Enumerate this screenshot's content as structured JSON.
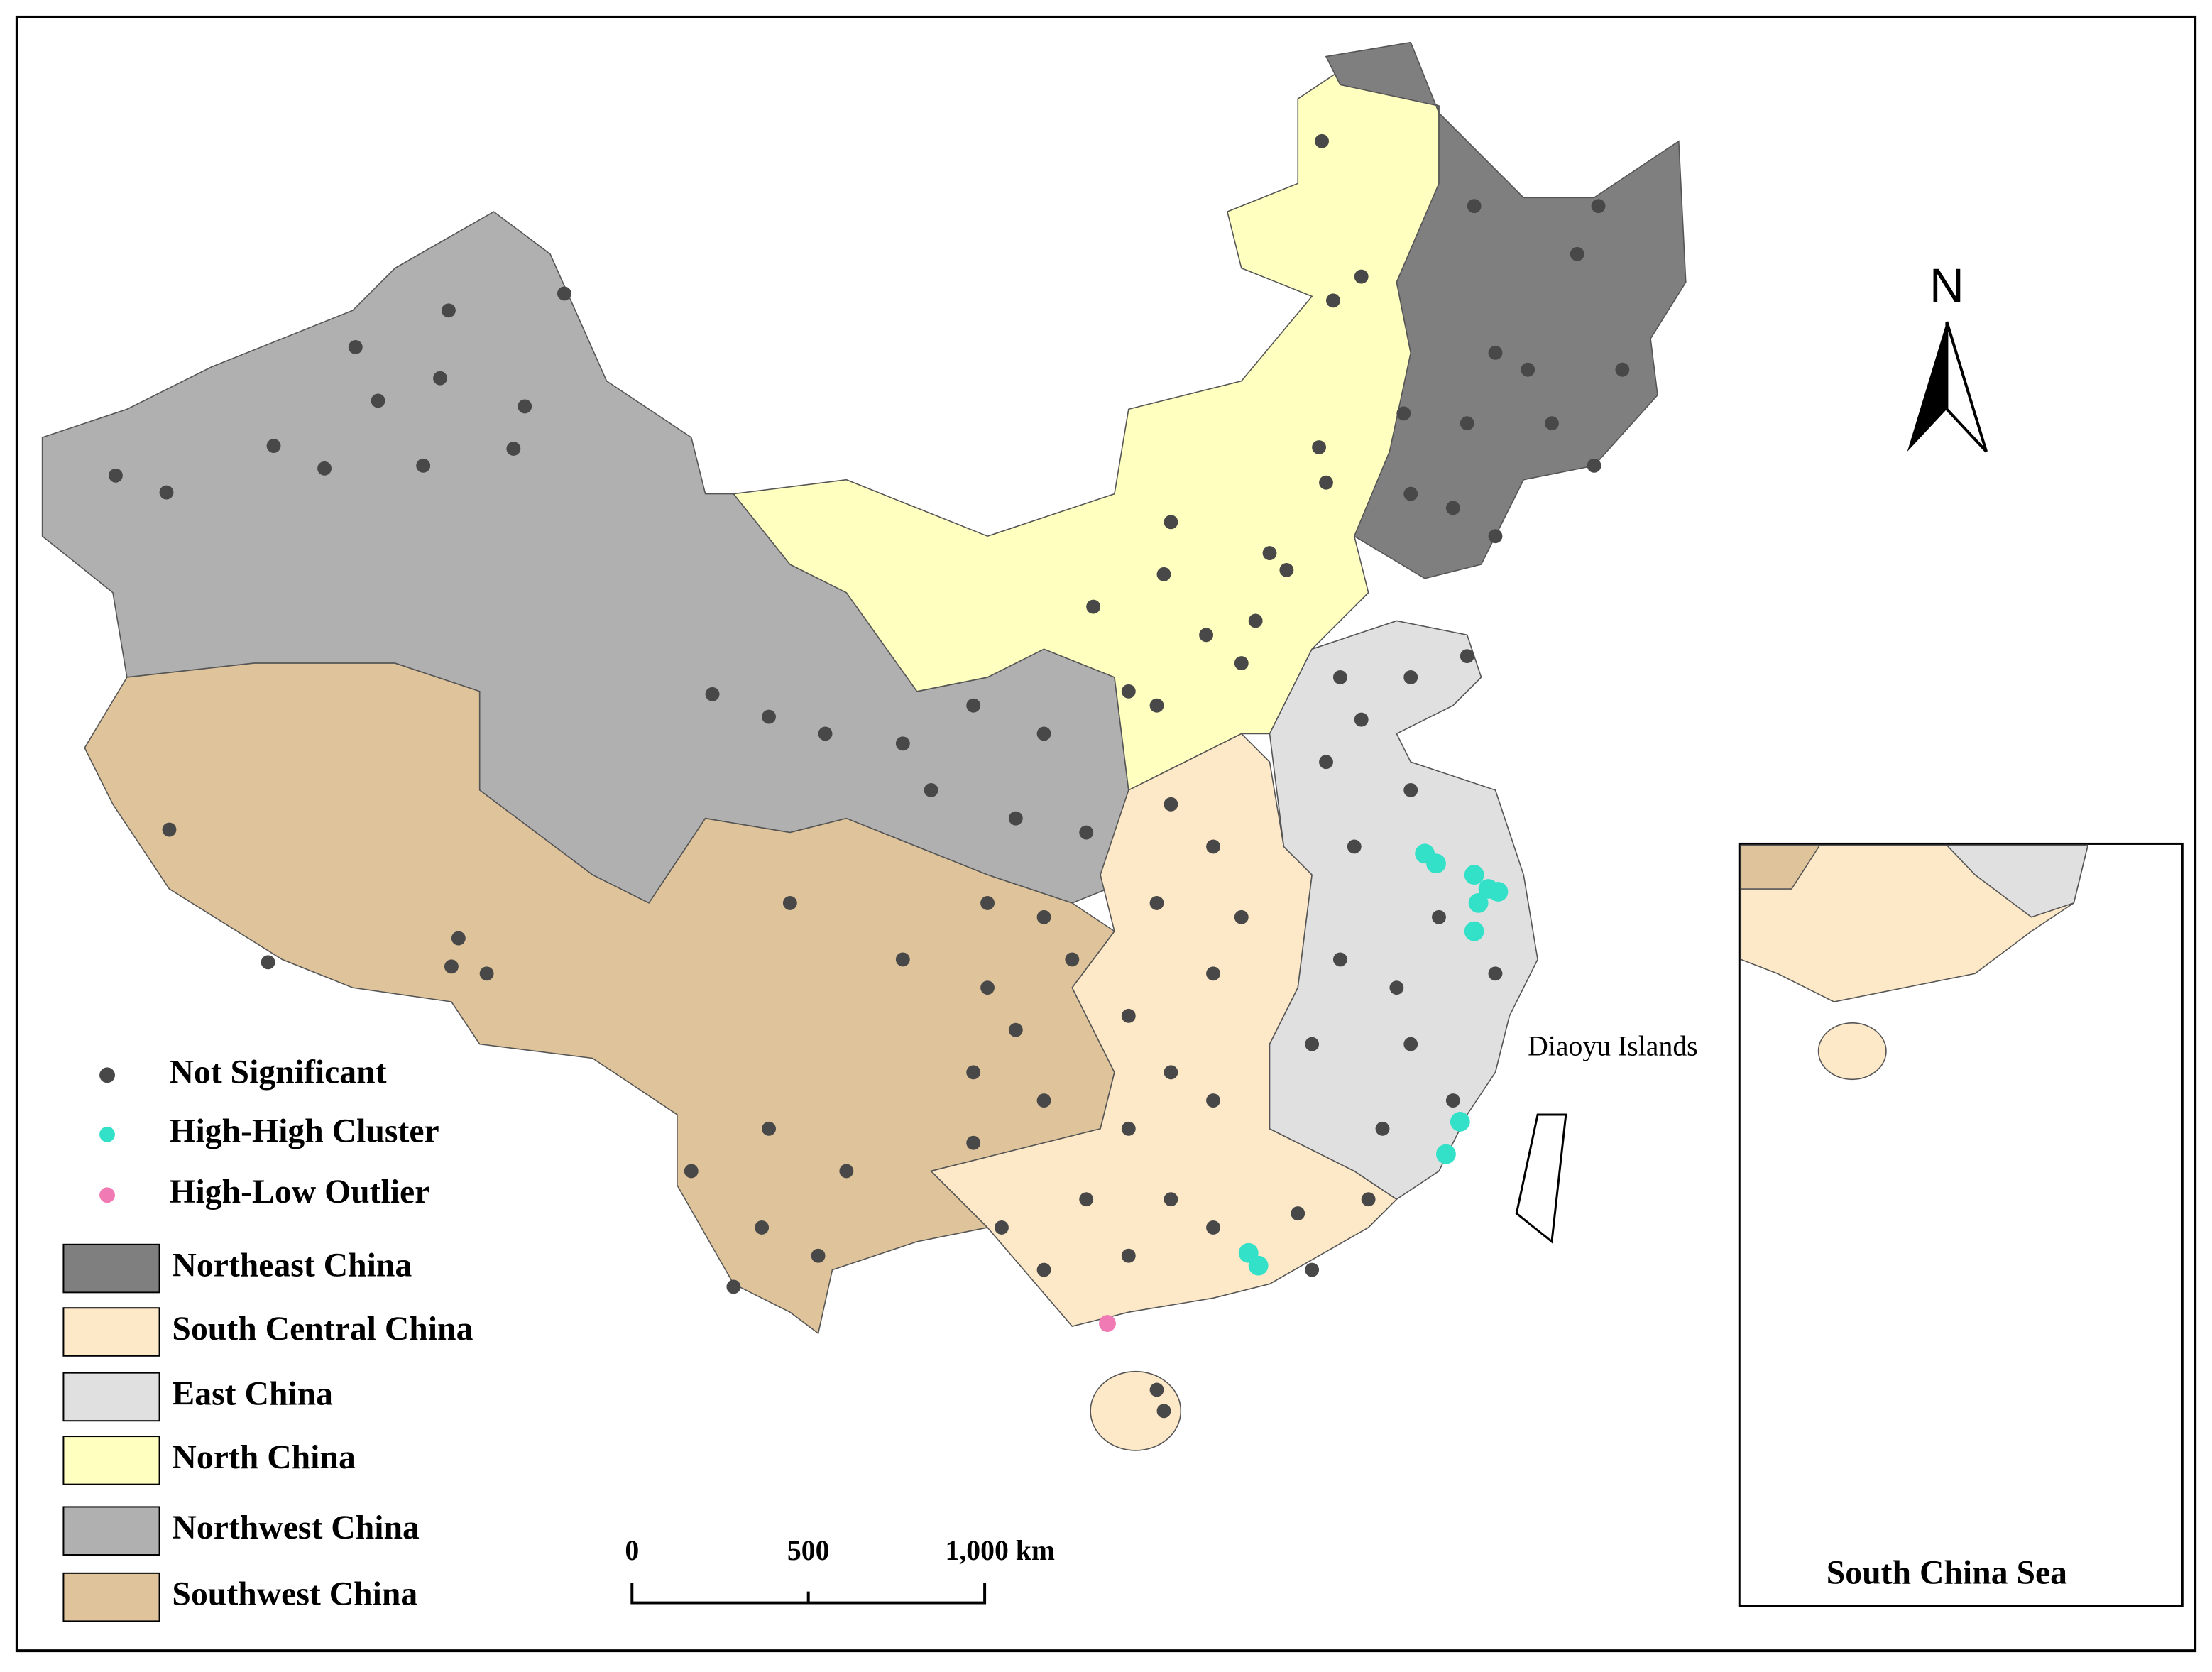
{
  "legend": {
    "points": [
      "Not Significant",
      "High-High Cluster",
      "High-Low Outlier"
    ],
    "regions": [
      "Northeast China",
      "South Central China",
      "East China",
      "North China",
      "Northwest China",
      "Southwest China"
    ]
  },
  "labels": {
    "north_arrow": "N",
    "diaoyu": "Diaoyu Islands",
    "inset_title": "South China Sea"
  },
  "scale_bar": [
    "0",
    "500",
    "1,000 km"
  ]
}
